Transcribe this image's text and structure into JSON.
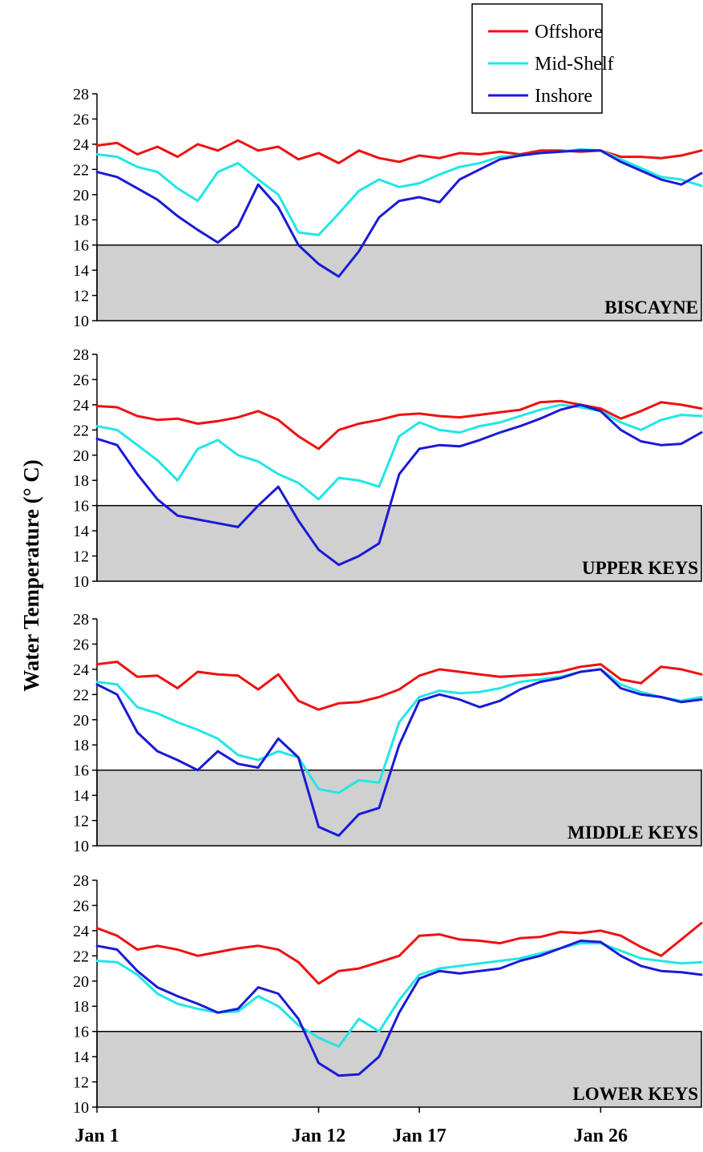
{
  "chart_data": {
    "type": "line",
    "ylabel": "Water Temperature (° C)",
    "ylim": [
      10,
      28
    ],
    "yticks": [
      10,
      12,
      14,
      16,
      18,
      20,
      22,
      24,
      26,
      28
    ],
    "xlim_days": [
      1,
      31
    ],
    "xticks": [
      {
        "label": "Jan 1",
        "day": 1
      },
      {
        "label": "Jan 12",
        "day": 12
      },
      {
        "label": "Jan 17",
        "day": 17
      },
      {
        "label": "Jan 26",
        "day": 26
      }
    ],
    "threshold": {
      "value": 16,
      "shading": "below",
      "color": "#d0d0d0"
    },
    "legend": {
      "placement": "top-right",
      "entries": [
        {
          "name": "Offshore",
          "color": "#ee1111"
        },
        {
          "name": "Mid-Shelf",
          "color": "#22e6e6"
        },
        {
          "name": "Inshore",
          "color": "#1a1ad6"
        }
      ]
    },
    "panels": [
      {
        "label": "BISCAYNE",
        "series": [
          {
            "name": "Offshore",
            "color": "#ee1111",
            "x": [
              1,
              2,
              3,
              4,
              5,
              6,
              7,
              8,
              9,
              10,
              11,
              12,
              13,
              14,
              15,
              16,
              17,
              18,
              19,
              20,
              21,
              22,
              23,
              24,
              25,
              26,
              27,
              28,
              29,
              30,
              31
            ],
            "y": [
              23.9,
              24.1,
              23.2,
              23.8,
              23.0,
              24.0,
              23.5,
              24.3,
              23.5,
              23.8,
              22.8,
              23.3,
              22.5,
              23.5,
              22.9,
              22.6,
              23.1,
              22.9,
              23.3,
              23.2,
              23.4,
              23.2,
              23.5,
              23.5,
              23.4,
              23.5,
              23.0,
              23.0,
              22.9,
              23.1,
              23.5
            ]
          },
          {
            "name": "Mid-Shelf",
            "color": "#22e6e6",
            "x": [
              1,
              2,
              3,
              4,
              5,
              6,
              7,
              8,
              9,
              10,
              11,
              12,
              13,
              14,
              15,
              16,
              17,
              18,
              19,
              20,
              21,
              22,
              23,
              24,
              25,
              26,
              27,
              28,
              29,
              30,
              31
            ],
            "y": [
              23.2,
              23.0,
              22.2,
              21.8,
              20.5,
              19.5,
              21.8,
              22.5,
              21.2,
              20.0,
              17.0,
              16.8,
              18.5,
              20.3,
              21.2,
              20.6,
              20.9,
              21.6,
              22.2,
              22.5,
              23.0,
              23.1,
              23.3,
              23.4,
              23.6,
              23.5,
              22.8,
              22.1,
              21.4,
              21.2,
              20.7
            ]
          },
          {
            "name": "Inshore",
            "color": "#1a1ad6",
            "x": [
              1,
              2,
              3,
              4,
              5,
              6,
              7,
              8,
              9,
              10,
              11,
              12,
              13,
              14,
              15,
              16,
              17,
              18,
              19,
              20,
              21,
              22,
              23,
              24,
              25,
              26,
              27,
              28,
              29,
              30,
              31
            ],
            "y": [
              21.8,
              21.4,
              20.5,
              19.6,
              18.3,
              17.2,
              16.2,
              17.5,
              20.8,
              19.0,
              16.0,
              14.5,
              13.5,
              15.5,
              18.2,
              19.5,
              19.8,
              19.4,
              21.2,
              22.0,
              22.8,
              23.1,
              23.3,
              23.4,
              23.5,
              23.5,
              22.6,
              21.9,
              21.2,
              20.8,
              21.7
            ]
          }
        ]
      },
      {
        "label": "UPPER KEYS",
        "series": [
          {
            "name": "Offshore",
            "color": "#ee1111",
            "x": [
              1,
              2,
              3,
              4,
              5,
              6,
              7,
              8,
              9,
              10,
              11,
              12,
              13,
              14,
              15,
              16,
              17,
              18,
              19,
              20,
              21,
              22,
              23,
              24,
              25,
              26,
              27,
              28,
              29,
              30,
              31
            ],
            "y": [
              23.9,
              23.8,
              23.1,
              22.8,
              22.9,
              22.5,
              22.7,
              23.0,
              23.5,
              22.8,
              21.5,
              20.5,
              22.0,
              22.5,
              22.8,
              23.2,
              23.3,
              23.1,
              23.0,
              23.2,
              23.4,
              23.6,
              24.2,
              24.3,
              24.0,
              23.7,
              22.9,
              23.5,
              24.2,
              24.0,
              23.7
            ]
          },
          {
            "name": "Mid-Shelf",
            "color": "#22e6e6",
            "x": [
              1,
              2,
              3,
              4,
              5,
              6,
              7,
              8,
              9,
              10,
              11,
              12,
              13,
              14,
              15,
              16,
              17,
              18,
              19,
              20,
              21,
              22,
              23,
              24,
              25,
              26,
              27,
              28,
              29,
              30,
              31
            ],
            "y": [
              22.3,
              22.0,
              20.8,
              19.6,
              18.0,
              20.5,
              21.2,
              20.0,
              19.5,
              18.5,
              17.8,
              16.5,
              18.2,
              18.0,
              17.5,
              21.5,
              22.6,
              22.0,
              21.8,
              22.3,
              22.6,
              23.1,
              23.6,
              24.0,
              23.8,
              23.5,
              22.6,
              22.0,
              22.8,
              23.2,
              23.1
            ]
          },
          {
            "name": "Inshore",
            "color": "#1a1ad6",
            "x": [
              1,
              2,
              3,
              4,
              5,
              6,
              7,
              8,
              9,
              10,
              11,
              12,
              13,
              14,
              15,
              16,
              17,
              18,
              19,
              20,
              21,
              22,
              23,
              24,
              25,
              26,
              27,
              28,
              29,
              30,
              31
            ],
            "y": [
              21.3,
              20.8,
              18.5,
              16.5,
              15.2,
              14.9,
              14.6,
              14.3,
              16.0,
              17.5,
              14.8,
              12.5,
              11.3,
              12.0,
              13.0,
              18.5,
              20.5,
              20.8,
              20.7,
              21.2,
              21.8,
              22.3,
              22.9,
              23.6,
              24.0,
              23.5,
              22.0,
              21.1,
              20.8,
              20.9,
              21.8
            ]
          }
        ]
      },
      {
        "label": "MIDDLE KEYS",
        "series": [
          {
            "name": "Offshore",
            "color": "#ee1111",
            "x": [
              1,
              2,
              3,
              4,
              5,
              6,
              7,
              8,
              9,
              10,
              11,
              12,
              13,
              14,
              15,
              16,
              17,
              18,
              19,
              20,
              21,
              22,
              23,
              24,
              25,
              26,
              27,
              28,
              29,
              30,
              31
            ],
            "y": [
              24.4,
              24.6,
              23.4,
              23.5,
              22.5,
              23.8,
              23.6,
              23.5,
              22.4,
              23.6,
              21.5,
              20.8,
              21.3,
              21.4,
              21.8,
              22.4,
              23.5,
              24.0,
              23.8,
              23.6,
              23.4,
              23.5,
              23.6,
              23.8,
              24.2,
              24.4,
              23.2,
              22.9,
              24.2,
              24.0,
              23.6
            ]
          },
          {
            "name": "Mid-Shelf",
            "color": "#22e6e6",
            "x": [
              1,
              2,
              3,
              4,
              5,
              6,
              7,
              8,
              9,
              10,
              11,
              12,
              13,
              14,
              15,
              16,
              17,
              18,
              19,
              20,
              21,
              22,
              23,
              24,
              25,
              26,
              27,
              28,
              29,
              30,
              31
            ],
            "y": [
              23.0,
              22.8,
              21.0,
              20.5,
              19.8,
              19.2,
              18.5,
              17.2,
              16.8,
              17.5,
              17.0,
              14.5,
              14.2,
              15.2,
              15.0,
              19.8,
              21.8,
              22.3,
              22.1,
              22.2,
              22.5,
              23.0,
              23.2,
              23.4,
              23.8,
              24.0,
              22.8,
              22.2,
              21.8,
              21.5,
              21.8
            ]
          },
          {
            "name": "Inshore",
            "color": "#1a1ad6",
            "x": [
              1,
              2,
              3,
              4,
              5,
              6,
              7,
              8,
              9,
              10,
              11,
              12,
              13,
              14,
              15,
              16,
              17,
              18,
              19,
              20,
              21,
              22,
              23,
              24,
              25,
              26,
              27,
              28,
              29,
              30,
              31
            ],
            "y": [
              22.8,
              22.0,
              19.0,
              17.5,
              16.8,
              16.0,
              17.5,
              16.5,
              16.2,
              18.5,
              17.0,
              11.5,
              10.8,
              12.5,
              13.0,
              18.0,
              21.5,
              22.0,
              21.6,
              21.0,
              21.5,
              22.4,
              23.0,
              23.3,
              23.8,
              24.0,
              22.5,
              22.0,
              21.8,
              21.4,
              21.6
            ]
          }
        ]
      },
      {
        "label": "LOWER KEYS",
        "series": [
          {
            "name": "Offshore",
            "color": "#ee1111",
            "x": [
              1,
              2,
              3,
              4,
              5,
              6,
              7,
              8,
              9,
              10,
              11,
              12,
              13,
              14,
              15,
              16,
              17,
              18,
              19,
              20,
              21,
              22,
              23,
              24,
              25,
              26,
              27,
              28,
              29,
              30,
              31
            ],
            "y": [
              24.2,
              23.6,
              22.5,
              22.8,
              22.5,
              22.0,
              22.3,
              22.6,
              22.8,
              22.5,
              21.5,
              19.8,
              20.8,
              21.0,
              21.5,
              22.0,
              23.6,
              23.7,
              23.3,
              23.2,
              23.0,
              23.4,
              23.5,
              23.9,
              23.8,
              24.0,
              23.6,
              22.7,
              22.0,
              23.3,
              24.6
            ]
          },
          {
            "name": "Mid-Shelf",
            "color": "#22e6e6",
            "x": [
              1,
              2,
              3,
              4,
              5,
              6,
              7,
              8,
              9,
              10,
              11,
              12,
              13,
              14,
              15,
              16,
              17,
              18,
              19,
              20,
              21,
              22,
              23,
              24,
              25,
              26,
              27,
              28,
              29,
              30,
              31
            ],
            "y": [
              21.6,
              21.5,
              20.5,
              19.0,
              18.2,
              17.8,
              17.5,
              17.6,
              18.8,
              18.0,
              16.5,
              15.5,
              14.8,
              17.0,
              16.0,
              18.5,
              20.5,
              21.0,
              21.2,
              21.4,
              21.6,
              21.8,
              22.2,
              22.6,
              23.0,
              23.0,
              22.4,
              21.8,
              21.6,
              21.4,
              21.5
            ]
          },
          {
            "name": "Inshore",
            "color": "#1a1ad6",
            "x": [
              1,
              2,
              3,
              4,
              5,
              6,
              7,
              8,
              9,
              10,
              11,
              12,
              13,
              14,
              15,
              16,
              17,
              18,
              19,
              20,
              21,
              22,
              23,
              24,
              25,
              26,
              27,
              28,
              29,
              30,
              31
            ],
            "y": [
              22.8,
              22.5,
              20.8,
              19.5,
              18.8,
              18.2,
              17.5,
              17.8,
              19.5,
              19.0,
              17.0,
              13.5,
              12.5,
              12.6,
              14.0,
              17.5,
              20.2,
              20.8,
              20.6,
              20.8,
              21.0,
              21.6,
              22.0,
              22.6,
              23.2,
              23.1,
              22.0,
              21.2,
              20.8,
              20.7,
              20.5
            ]
          }
        ]
      }
    ]
  }
}
